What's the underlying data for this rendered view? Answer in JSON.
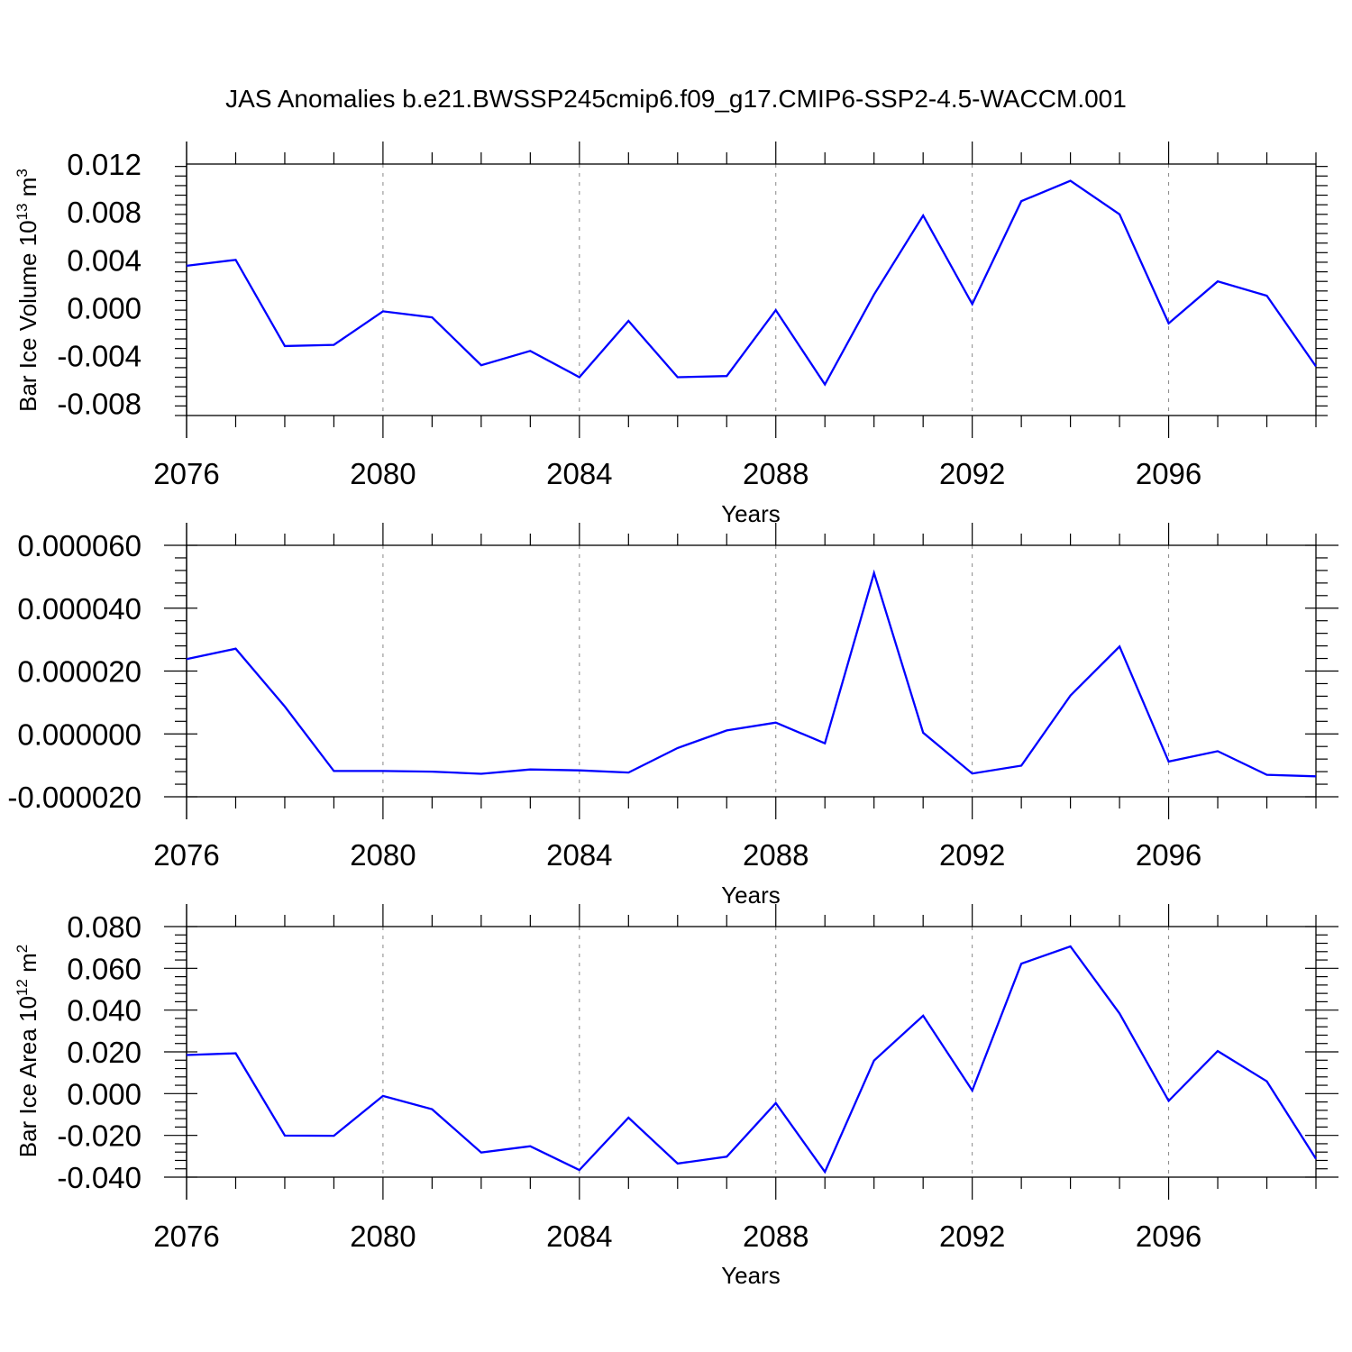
{
  "title": "JAS Anomalies b.e21.BWSSP245cmip6.f09_g17.CMIP6-SSP2-4.5-WACCM.001",
  "colors": {
    "series": "#0000ff",
    "axis": "#000000",
    "grid": "#888888"
  },
  "chart_data": [
    {
      "type": "line",
      "title": "JAS Anomalies b.e21.BWSSP245cmip6.f09_g17.CMIP6-SSP2-4.5-WACCM.001",
      "xlabel": "Years",
      "ylabel": "Bar Ice Volume 10",
      "ylabel_exp": "13",
      "ylabel_unit": " m",
      "ylabel_unit_exp": "3",
      "xlim": [
        2076,
        2099
      ],
      "ylim": [
        -0.009,
        0.012
      ],
      "xticks": [
        "2076",
        "2080",
        "2084",
        "2088",
        "2092",
        "2096"
      ],
      "ytick_values": [
        0.012,
        0.008,
        0.004,
        0.0,
        -0.004,
        -0.008
      ],
      "yticks": [
        "0.012",
        "0.008",
        "0.004",
        "0.000",
        "-0.004",
        "-0.008"
      ],
      "grid": "vertical dashed at labeled years",
      "x": [
        2076,
        2077,
        2078,
        2079,
        2080,
        2081,
        2082,
        2083,
        2084,
        2085,
        2086,
        2087,
        2088,
        2089,
        2090,
        2091,
        2092,
        2093,
        2094,
        2095,
        2096,
        2097,
        2098,
        2099
      ],
      "values": [
        0.0035,
        0.004,
        -0.0032,
        -0.0031,
        -0.0003,
        -0.0008,
        -0.0048,
        -0.0036,
        -0.0058,
        -0.0011,
        -0.0058,
        -0.0057,
        -0.0002,
        -0.0064,
        0.0011,
        0.0077,
        0.0003,
        0.0089,
        0.0106,
        0.0078,
        -0.0013,
        0.0022,
        0.001,
        -0.0049
      ]
    },
    {
      "type": "line",
      "title": "",
      "xlabel": "Years",
      "ylabel": "",
      "ylabel_exp": "",
      "ylabel_unit": "",
      "ylabel_unit_exp": "",
      "xlim": [
        2076,
        2099
      ],
      "ylim": [
        -2e-05,
        6e-05
      ],
      "xticks": [
        "2076",
        "2080",
        "2084",
        "2088",
        "2092",
        "2096"
      ],
      "ytick_values": [
        6e-05,
        4e-05,
        2e-05,
        0.0,
        -2e-05
      ],
      "yticks": [
        "0.000060",
        "0.000040",
        "0.000020",
        "0.000000",
        "-0.000020"
      ],
      "grid": "vertical dashed at labeled years",
      "x": [
        2076,
        2077,
        2078,
        2079,
        2080,
        2081,
        2082,
        2083,
        2084,
        2085,
        2086,
        2087,
        2088,
        2089,
        2090,
        2091,
        2092,
        2093,
        2094,
        2095,
        2096,
        2097,
        2098,
        2099
      ],
      "values": [
        2.38e-05,
        2.71e-05,
        8.7e-06,
        -1.18e-05,
        -1.18e-05,
        -1.2e-05,
        -1.27e-05,
        -1.13e-05,
        -1.16e-05,
        -1.23e-05,
        -4.5e-06,
        1.1e-06,
        3.6e-06,
        -3e-06,
        5.12e-05,
        4e-07,
        -1.26e-05,
        -1.01e-05,
        1.22e-05,
        2.78e-05,
        -8.8e-06,
        -5.5e-06,
        -1.3e-05,
        -1.35e-05
      ]
    },
    {
      "type": "line",
      "title": "",
      "xlabel": "Years",
      "ylabel": "Bar Ice Area 10",
      "ylabel_exp": "12",
      "ylabel_unit": " m",
      "ylabel_unit_exp": "2",
      "xlim": [
        2076,
        2099
      ],
      "ylim": [
        -0.04,
        0.08
      ],
      "xticks": [
        "2076",
        "2080",
        "2084",
        "2088",
        "2092",
        "2096"
      ],
      "ytick_values": [
        0.08,
        0.06,
        0.04,
        0.02,
        0.0,
        -0.02,
        -0.04
      ],
      "yticks": [
        "0.080",
        "0.060",
        "0.040",
        "0.020",
        "0.000",
        "-0.020",
        "-0.040"
      ],
      "grid": "vertical dashed at labeled years",
      "x": [
        2076,
        2077,
        2078,
        2079,
        2080,
        2081,
        2082,
        2083,
        2084,
        2085,
        2086,
        2087,
        2088,
        2089,
        2090,
        2091,
        2092,
        2093,
        2094,
        2095,
        2096,
        2097,
        2098,
        2099
      ],
      "values": [
        0.0185,
        0.0193,
        -0.0201,
        -0.0202,
        -0.0011,
        -0.0075,
        -0.0282,
        -0.0252,
        -0.0366,
        -0.0115,
        -0.0335,
        -0.0302,
        -0.0045,
        -0.0375,
        0.0158,
        0.0373,
        0.0015,
        0.0622,
        0.0705,
        0.0384,
        -0.0035,
        0.0204,
        0.0059,
        -0.0312
      ]
    }
  ]
}
